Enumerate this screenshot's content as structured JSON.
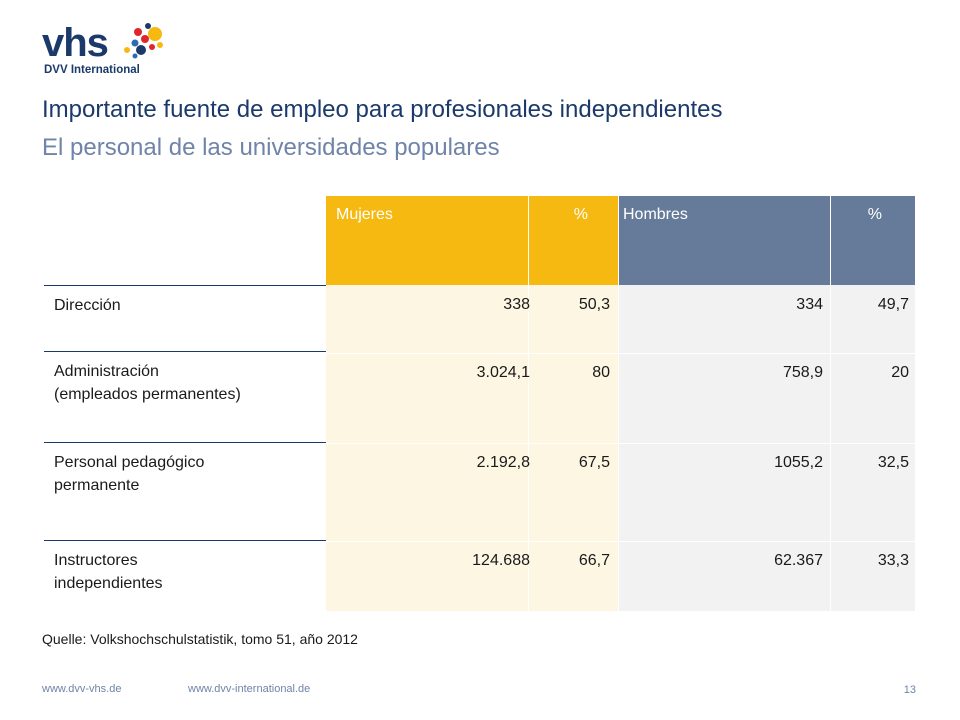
{
  "logo": {
    "wordmark": "vhs",
    "subtitle": "DVV International"
  },
  "title": "Importante fuente de empleo para profesionales independientes",
  "subtitle": "El personal de las universidades populares",
  "table": {
    "headers": [
      "Mujeres",
      "%",
      "Hombres",
      "%"
    ],
    "rows": [
      {
        "label": [
          "Dirección"
        ],
        "values": [
          "338",
          "50,3",
          "334",
          "49,7"
        ]
      },
      {
        "label": [
          "Administración",
          "(empleados permanentes)"
        ],
        "values": [
          "3.024,1",
          "80",
          "758,9",
          "20"
        ]
      },
      {
        "label": [
          "Personal pedagógico",
          "permanente"
        ],
        "values": [
          "2.192,8",
          "67,5",
          "1055,2",
          "32,5"
        ]
      },
      {
        "label": [
          "Instructores",
          "independientes"
        ],
        "values": [
          "124.688",
          "66,7",
          "62.367",
          "33,3"
        ]
      }
    ],
    "colors": {
      "mujeres": "#f6b912",
      "hombres": "#667b99",
      "mujeres_body": "#fdf6e3",
      "hombres_body": "#f2f2f2"
    }
  },
  "source": "Quelle: Volkshochschulstatistik, tomo 51, año 2012",
  "footer": {
    "link1": "www.dvv-vhs.de",
    "link2": "www.dvv-international.de",
    "page": "13"
  }
}
